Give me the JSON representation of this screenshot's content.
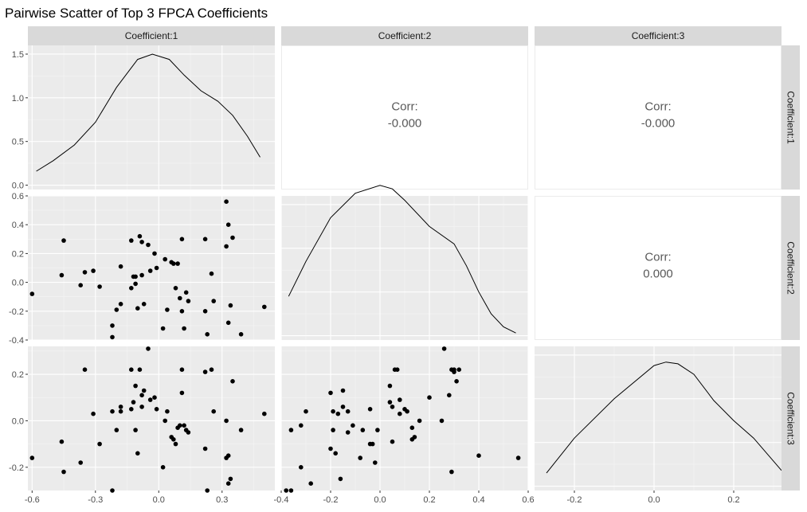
{
  "chart_data": {
    "type": "scatter",
    "title": "Pairwise Scatter of Top 3 FPCA Coefficients",
    "variables": [
      "Coefficient:1",
      "Coefficient:2",
      "Coefficient:3"
    ],
    "ranges": [
      [
        -0.62,
        0.55
      ],
      [
        -0.4,
        0.6
      ],
      [
        -0.3,
        0.32
      ]
    ],
    "ticks": [
      [
        -0.6,
        -0.3,
        0.0,
        0.3
      ],
      [
        -0.4,
        -0.2,
        0.0,
        0.2,
        0.4,
        0.6
      ],
      [
        -0.2,
        0.0,
        0.2
      ]
    ],
    "tick_labels": [
      [
        "-0.6",
        "-0.3",
        "0.0",
        "0.3"
      ],
      [
        "-0.4",
        "-0.2",
        "0.0",
        "0.2",
        "0.4",
        "0.6"
      ],
      [
        "-0.2",
        "0.0",
        "0.2"
      ]
    ],
    "density_ylim": [
      -0.05,
      1.6
    ],
    "density_ticks": [
      0.0,
      0.5,
      1.0,
      1.5
    ],
    "density_tick_labels": [
      "0.0",
      "0.5",
      "1.0",
      "1.5"
    ],
    "correlations": [
      {
        "row": 0,
        "col": 1,
        "label": "Corr:",
        "value": "-0.000"
      },
      {
        "row": 0,
        "col": 2,
        "label": "Corr:",
        "value": "-0.000"
      },
      {
        "row": 1,
        "col": 2,
        "label": "Corr:",
        "value": "0.000"
      }
    ],
    "densities": [
      {
        "var": 0,
        "x": [
          -0.58,
          -0.5,
          -0.4,
          -0.3,
          -0.2,
          -0.1,
          -0.03,
          0.05,
          0.12,
          0.2,
          0.28,
          0.35,
          0.42,
          0.48
        ],
        "y": [
          0.16,
          0.28,
          0.46,
          0.72,
          1.12,
          1.44,
          1.5,
          1.44,
          1.26,
          1.08,
          0.96,
          0.8,
          0.56,
          0.32
        ]
      },
      {
        "var": 1,
        "x": [
          -0.37,
          -0.3,
          -0.2,
          -0.1,
          0.0,
          0.05,
          0.1,
          0.2,
          0.3,
          0.35,
          0.4,
          0.45,
          0.5,
          0.55
        ],
        "y": [
          0.45,
          0.85,
          1.35,
          1.63,
          1.72,
          1.68,
          1.55,
          1.25,
          1.05,
          0.8,
          0.5,
          0.25,
          0.1,
          0.03
        ]
      },
      {
        "var": 2,
        "x": [
          -0.27,
          -0.2,
          -0.1,
          0.0,
          0.03,
          0.06,
          0.1,
          0.15,
          0.2,
          0.25,
          0.32
        ],
        "y": [
          0.15,
          0.55,
          1.0,
          1.38,
          1.42,
          1.4,
          1.28,
          0.98,
          0.75,
          0.55,
          0.18
        ]
      }
    ],
    "points": [
      {
        "c1": -0.6,
        "c2": -0.08,
        "c3": -0.16
      },
      {
        "c1": -0.46,
        "c2": 0.05,
        "c3": -0.09
      },
      {
        "c1": -0.45,
        "c2": 0.29,
        "c3": -0.22
      },
      {
        "c1": -0.37,
        "c2": -0.02,
        "c3": -0.18
      },
      {
        "c1": -0.35,
        "c2": 0.07,
        "c3": 0.22
      },
      {
        "c1": -0.31,
        "c2": 0.08,
        "c3": 0.03
      },
      {
        "c1": -0.28,
        "c2": -0.03,
        "c3": -0.1
      },
      {
        "c1": -0.22,
        "c2": -0.38,
        "c3": -0.3
      },
      {
        "c1": -0.22,
        "c2": -0.3,
        "c3": 0.04
      },
      {
        "c1": -0.2,
        "c2": -0.19,
        "c3": -0.04
      },
      {
        "c1": -0.18,
        "c2": 0.11,
        "c3": 0.04
      },
      {
        "c1": -0.18,
        "c2": -0.15,
        "c3": 0.06
      },
      {
        "c1": -0.13,
        "c2": -0.04,
        "c3": 0.05
      },
      {
        "c1": -0.13,
        "c2": 0.29,
        "c3": 0.22
      },
      {
        "c1": -0.12,
        "c2": 0.04,
        "c3": 0.08
      },
      {
        "c1": -0.11,
        "c2": -0.01,
        "c3": -0.04
      },
      {
        "c1": -0.11,
        "c2": 0.04,
        "c3": 0.15
      },
      {
        "c1": -0.1,
        "c2": -0.18,
        "c3": -0.14
      },
      {
        "c1": -0.09,
        "c2": 0.32,
        "c3": 0.22
      },
      {
        "c1": -0.08,
        "c2": 0.28,
        "c3": 0.11
      },
      {
        "c1": -0.08,
        "c2": 0.05,
        "c3": 0.06
      },
      {
        "c1": -0.07,
        "c2": -0.15,
        "c3": 0.13
      },
      {
        "c1": -0.05,
        "c2": 0.26,
        "c3": 0.31
      },
      {
        "c1": -0.04,
        "c2": 0.08,
        "c3": 0.09
      },
      {
        "c1": -0.02,
        "c2": 0.2,
        "c3": 0.1
      },
      {
        "c1": -0.01,
        "c2": 0.1,
        "c3": 0.05
      },
      {
        "c1": 0.02,
        "c2": -0.32,
        "c3": -0.2
      },
      {
        "c1": 0.03,
        "c2": 0.16,
        "c3": 0.0
      },
      {
        "c1": 0.04,
        "c2": -0.19,
        "c3": 0.04
      },
      {
        "c1": 0.06,
        "c2": 0.14,
        "c3": -0.07
      },
      {
        "c1": 0.07,
        "c2": 0.13,
        "c3": -0.08
      },
      {
        "c1": 0.08,
        "c2": -0.04,
        "c3": -0.1
      },
      {
        "c1": 0.09,
        "c2": 0.13,
        "c3": -0.03
      },
      {
        "c1": 0.1,
        "c2": -0.11,
        "c3": -0.02
      },
      {
        "c1": 0.11,
        "c2": -0.2,
        "c3": 0.12
      },
      {
        "c1": 0.11,
        "c2": 0.3,
        "c3": 0.22
      },
      {
        "c1": 0.12,
        "c2": -0.32,
        "c3": -0.02
      },
      {
        "c1": 0.13,
        "c2": -0.07,
        "c3": -0.04
      },
      {
        "c1": 0.14,
        "c2": -0.13,
        "c3": -0.05
      },
      {
        "c1": 0.22,
        "c2": 0.3,
        "c3": 0.21
      },
      {
        "c1": 0.22,
        "c2": -0.2,
        "c3": -0.12
      },
      {
        "c1": 0.23,
        "c2": -0.36,
        "c3": -0.3
      },
      {
        "c1": 0.25,
        "c2": 0.06,
        "c3": 0.22
      },
      {
        "c1": 0.26,
        "c2": -0.13,
        "c3": 0.04
      },
      {
        "c1": 0.32,
        "c2": 0.25,
        "c3": 0.0
      },
      {
        "c1": 0.32,
        "c2": 0.56,
        "c3": -0.16
      },
      {
        "c1": 0.33,
        "c2": 0.4,
        "c3": -0.15
      },
      {
        "c1": 0.33,
        "c2": -0.28,
        "c3": -0.27
      },
      {
        "c1": 0.34,
        "c2": -0.16,
        "c3": -0.25
      },
      {
        "c1": 0.35,
        "c2": 0.31,
        "c3": 0.17
      },
      {
        "c1": 0.39,
        "c2": -0.36,
        "c3": -0.04
      },
      {
        "c1": 0.5,
        "c2": -0.17,
        "c3": 0.03
      }
    ]
  }
}
